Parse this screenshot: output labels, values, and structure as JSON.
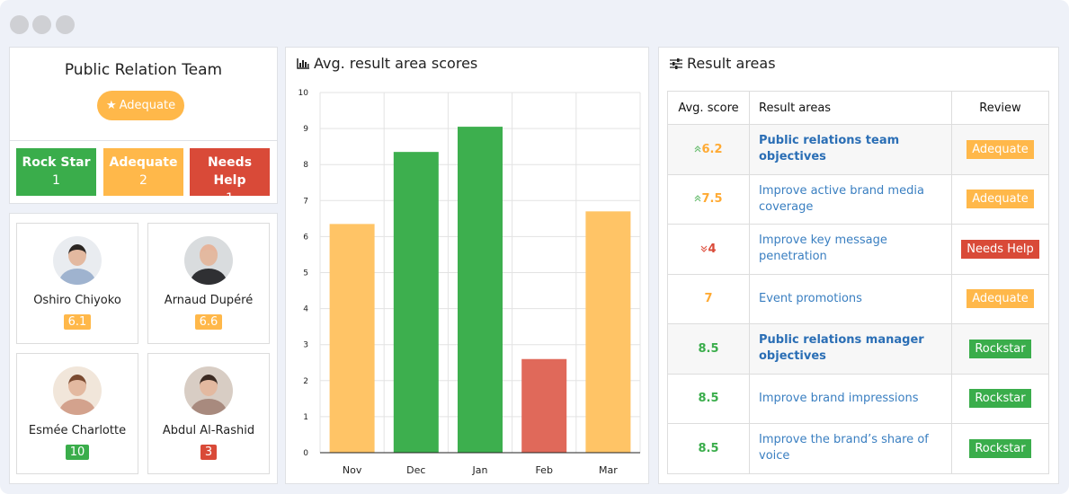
{
  "window": {
    "controls": [
      "close",
      "minimize",
      "maximize"
    ]
  },
  "team": {
    "title": "Public Relation Team",
    "status": "Adequate",
    "status_icon": "star-icon",
    "counts": [
      {
        "label": "Rock Star",
        "value": "1",
        "color": "#3aad4b"
      },
      {
        "label": "Adequate",
        "value": "2",
        "color": "#ffb84a"
      },
      {
        "label": "Needs Help",
        "value": "1",
        "color": "#d94a38"
      }
    ]
  },
  "members": [
    {
      "name": "Oshiro Chiyoko",
      "score": "6.1",
      "color": "#ffb84a"
    },
    {
      "name": "Arnaud Dupéré",
      "score": "6.6",
      "color": "#ffb84a"
    },
    {
      "name": "Esmée Charlotte",
      "score": "10",
      "color": "#3aad4b"
    },
    {
      "name": "Abdul Al-Rashid",
      "score": "3",
      "color": "#d94a38"
    }
  ],
  "chart_panel": {
    "title": "Avg. result area scores",
    "icon": "bar-chart-icon"
  },
  "chart_data": {
    "type": "bar",
    "categories": [
      "Nov",
      "Dec",
      "Jan",
      "Feb",
      "Mar"
    ],
    "values": [
      6.35,
      8.35,
      9.05,
      2.6,
      6.7
    ],
    "colors": [
      "#ffc466",
      "#3daf4e",
      "#3daf4e",
      "#e0695a",
      "#ffc466"
    ],
    "ylim": [
      0,
      10
    ],
    "yticks": [
      "0",
      "1",
      "2",
      "3",
      "4",
      "5",
      "6",
      "7",
      "8",
      "9",
      "10"
    ],
    "grid": true
  },
  "results": {
    "title": "Result areas",
    "icon": "sliders-icon",
    "headers": [
      "Avg. score",
      "Result areas",
      "Review"
    ],
    "rows": [
      {
        "trend": "up",
        "score": "6.2",
        "score_color": "#ffaa33",
        "area": "Public relations team objectives",
        "review": "Adequate",
        "review_color": "#ffb84a",
        "group": true
      },
      {
        "trend": "up",
        "score": "7.5",
        "score_color": "#ffaa33",
        "area": "Improve active brand media coverage",
        "review": "Adequate",
        "review_color": "#ffb84a",
        "group": false
      },
      {
        "trend": "down",
        "score": "4",
        "score_color": "#d94a38",
        "area": "Improve key message penetration",
        "review": "Needs Help",
        "review_color": "#d94a38",
        "group": false
      },
      {
        "trend": "",
        "score": "7",
        "score_color": "#ffaa33",
        "area": "Event promotions",
        "review": "Adequate",
        "review_color": "#ffb84a",
        "group": false
      },
      {
        "trend": "",
        "score": "8.5",
        "score_color": "#3aad4b",
        "area": "Public relations manager objectives",
        "review": "Rockstar",
        "review_color": "#3aad4b",
        "group": true
      },
      {
        "trend": "",
        "score": "8.5",
        "score_color": "#3aad4b",
        "area": "Improve brand impressions",
        "review": "Rockstar",
        "review_color": "#3aad4b",
        "group": false
      },
      {
        "trend": "",
        "score": "8.5",
        "score_color": "#3aad4b",
        "area": "Improve the brand’s share of voice",
        "review": "Rockstar",
        "review_color": "#3aad4b",
        "group": false
      }
    ]
  }
}
